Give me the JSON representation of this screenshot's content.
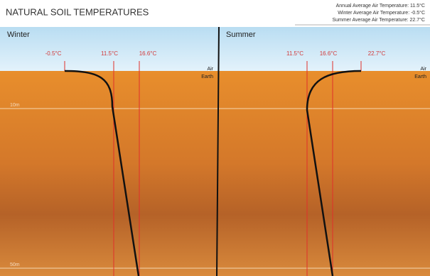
{
  "header": {
    "title": "NATURAL SOIL TEMPERATURES",
    "notes": [
      "Annual Average Air Temperature: 11.5°C",
      "Winter Average Air Temperature: -0.5°C",
      "Summer Average Air Temperature: 22.7°C"
    ]
  },
  "panels": [
    {
      "season": "Winter",
      "temperatures": [
        "-0.5°C",
        "11.5°C",
        "16.6°C"
      ],
      "air": "Air",
      "earth": "Earth"
    },
    {
      "season": "Summer",
      "temperatures": [
        "11.5°C",
        "16.6°C",
        "22.7°C"
      ],
      "air": "Air",
      "earth": "Earth"
    }
  ],
  "depths": [
    "10m",
    "50m"
  ]
}
